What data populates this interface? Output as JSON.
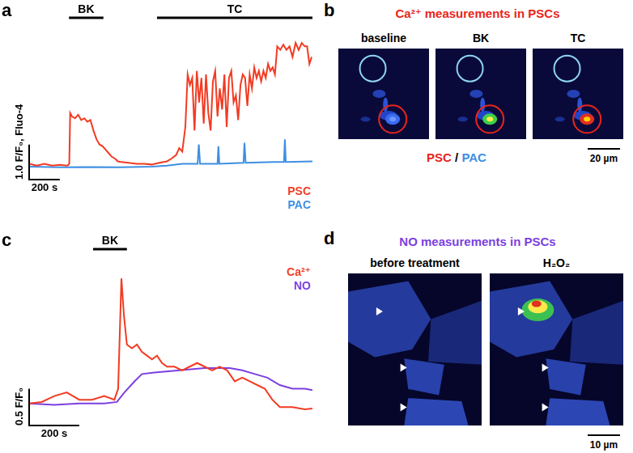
{
  "chart_data": [
    {
      "panel": "a",
      "type": "line",
      "series": [
        {
          "name": "PSC",
          "color": "#f23b22",
          "x": [
            0,
            50,
            100,
            150,
            200,
            250,
            262,
            268,
            280,
            300,
            320,
            340,
            360,
            380,
            400,
            420,
            440,
            460,
            480,
            500,
            520,
            540,
            560,
            580,
            600,
            650,
            700,
            750,
            800,
            850,
            900,
            930,
            960,
            980,
            1000,
            1020,
            1035,
            1050,
            1065,
            1080,
            1095,
            1110,
            1125,
            1140,
            1155,
            1170,
            1185,
            1200,
            1215,
            1230,
            1245,
            1260,
            1275,
            1290,
            1305,
            1320,
            1335,
            1350,
            1365,
            1380,
            1395,
            1410,
            1425,
            1440,
            1455,
            1470,
            1485,
            1500,
            1515,
            1530,
            1545,
            1560,
            1575,
            1590,
            1605,
            1620,
            1640,
            1660,
            1680,
            1700,
            1720,
            1740,
            1760,
            1780,
            1800,
            1815,
            1830,
            1845
          ],
          "values": [
            1.05,
            1.0,
            1.05,
            1.0,
            1.02,
            1.0,
            1.05,
            2.5,
            2.4,
            2.35,
            2.45,
            2.3,
            2.35,
            2.25,
            2.3,
            2.0,
            1.75,
            1.6,
            1.55,
            1.45,
            1.35,
            1.25,
            1.2,
            1.12,
            1.1,
            1.08,
            1.05,
            1.05,
            1.03,
            1.08,
            1.12,
            1.2,
            1.3,
            1.5,
            1.4,
            2.1,
            3.6,
            3.3,
            3.5,
            2.0,
            3.7,
            2.8,
            3.5,
            2.2,
            3.6,
            2.5,
            2.0,
            3.4,
            3.7,
            2.4,
            3.2,
            2.6,
            3.6,
            2.1,
            3.5,
            3.7,
            2.8,
            3.0,
            2.3,
            3.3,
            3.6,
            3.5,
            2.7,
            3.6,
            3.2,
            3.8,
            3.5,
            3.7,
            3.4,
            3.7,
            3.5,
            3.9,
            3.7,
            3.8,
            3.6,
            4.4,
            4.3,
            4.45,
            4.3,
            4.4,
            4.1,
            4.5,
            4.3,
            4.5,
            4.4,
            4.4,
            3.9,
            4.1
          ]
        },
        {
          "name": "PAC",
          "color": "#3d8fe3",
          "x": [
            0,
            200,
            400,
            600,
            800,
            900,
            1000,
            1100,
            1108,
            1116,
            1200,
            1230,
            1236,
            1242,
            1400,
            1406,
            1414,
            1600,
            1664,
            1670,
            1676,
            1850
          ],
          "values": [
            0.97,
            0.95,
            0.96,
            0.95,
            0.97,
            1.0,
            1.05,
            1.05,
            1.6,
            1.05,
            1.05,
            1.05,
            1.55,
            1.05,
            1.08,
            1.65,
            1.08,
            1.1,
            1.1,
            1.75,
            1.1,
            1.12
          ]
        }
      ],
      "xlim": [
        0,
        1850
      ],
      "ylim": [
        0.6,
        4.8
      ],
      "tick_labels": false,
      "grid": false,
      "legend": "lower right",
      "treatments": [
        {
          "label": "BK",
          "start": 260,
          "end": 485
        },
        {
          "label": "TC",
          "start": 835,
          "end": 1850
        }
      ],
      "scale_bars": {
        "x": {
          "value": 200,
          "label": "200 s"
        },
        "y": {
          "value": 1.0,
          "label": "1.0 F/F₀, Fluo-4"
        }
      }
    },
    {
      "panel": "c",
      "type": "line",
      "series": [
        {
          "name": "Ca²⁺",
          "color": "#f23b22",
          "x": [
            0,
            50,
            100,
            150,
            200,
            250,
            300,
            340,
            355,
            368,
            378,
            390,
            410,
            430,
            450,
            470,
            490,
            510,
            530,
            550,
            580,
            610,
            640,
            670,
            700,
            730,
            760,
            790,
            820,
            850,
            880,
            910,
            940,
            970,
            1000,
            1050,
            1100,
            1130
          ],
          "values": [
            1.0,
            1.02,
            1.1,
            1.15,
            1.05,
            1.05,
            1.1,
            1.05,
            1.2,
            2.7,
            2.2,
            1.8,
            1.75,
            1.8,
            1.7,
            1.65,
            1.6,
            1.65,
            1.55,
            1.5,
            1.5,
            1.45,
            1.5,
            1.55,
            1.5,
            1.45,
            1.5,
            1.45,
            1.3,
            1.35,
            1.3,
            1.25,
            1.2,
            1.05,
            0.95,
            0.95,
            0.92,
            0.93
          ]
        },
        {
          "name": "NO",
          "color": "#7b3fe0",
          "x": [
            0,
            100,
            200,
            300,
            350,
            380,
            420,
            450,
            500,
            600,
            700,
            800,
            850,
            900,
            950,
            1000,
            1050,
            1100,
            1130
          ],
          "values": [
            1.0,
            0.98,
            1.0,
            1.0,
            1.02,
            1.15,
            1.3,
            1.4,
            1.42,
            1.45,
            1.48,
            1.48,
            1.45,
            1.4,
            1.35,
            1.25,
            1.2,
            1.2,
            1.18
          ]
        }
      ],
      "xlim": [
        0,
        1130
      ],
      "ylim": [
        0.7,
        2.9
      ],
      "tick_labels": false,
      "grid": false,
      "legend": "upper right",
      "treatments": [
        {
          "label": "BK",
          "start": 255,
          "end": 390
        }
      ],
      "scale_bars": {
        "x": {
          "value": 200,
          "label": "200 s"
        },
        "y": {
          "value": 0.5,
          "label": "0.5 F/F₀"
        }
      }
    }
  ],
  "image_panels": [
    {
      "panel": "b",
      "title": "Ca²⁺ measurements in PSCs",
      "color": "#e8251b",
      "frames": [
        "baseline",
        "BK",
        "TC"
      ],
      "caption": [
        {
          "text": "PSC",
          "color": "#e8251b"
        },
        {
          "text": "PAC",
          "color": "#3d8fe3"
        }
      ],
      "caption_separator": "/",
      "scale_bar": "20 µm"
    },
    {
      "panel": "d",
      "title": "NO measurements in PSCs",
      "color": "#7b3fe0",
      "frames": [
        "before treatment",
        "H₂O₂"
      ],
      "scale_bar": "10 µm"
    }
  ]
}
